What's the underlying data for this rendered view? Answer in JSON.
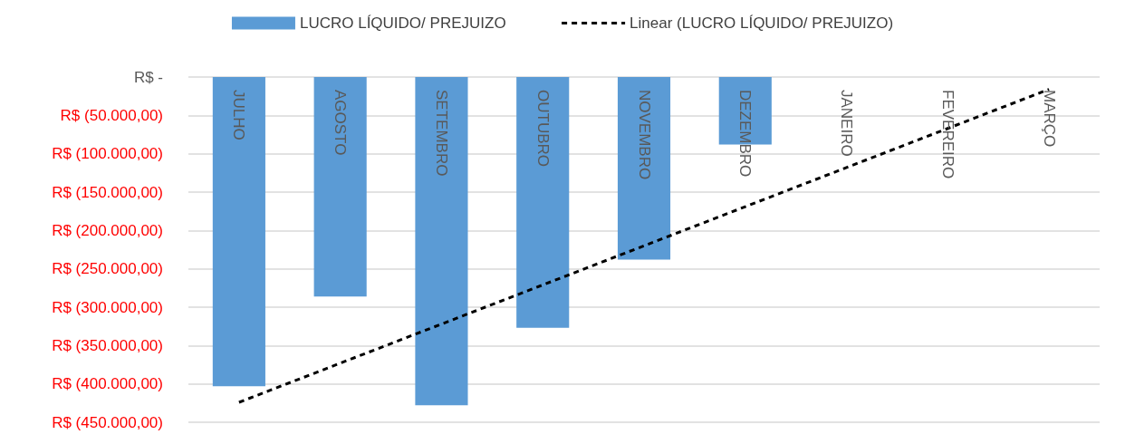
{
  "chart_data": {
    "type": "bar",
    "categories": [
      "JULHO",
      "AGOSTO",
      "SETEMBRO",
      "OUTUBRO",
      "NOVEMBRO",
      "DEZEMBRO",
      "JANEIRO",
      "FEVEREIRO",
      "MARÇO"
    ],
    "series": [
      {
        "name": "LUCRO LÍQUIDO/ PREJUIZO",
        "color": "#5b9bd5",
        "values": [
          -403000,
          -286000,
          -428000,
          -327000,
          -238000,
          -88000,
          null,
          null,
          null
        ]
      },
      {
        "name": "Linear (LUCRO LÍQUIDO/ PREJUIZO)",
        "type": "line",
        "color": "#000000",
        "line_style": "dashed",
        "marker": "none",
        "values": [
          -424000,
          -373000,
          -322000,
          -271000,
          -220000,
          -169000,
          -118000,
          -67000,
          -16000
        ]
      }
    ],
    "ylim": [
      -450000,
      0
    ],
    "yticks": [
      {
        "value": 0,
        "label": "R$ -"
      },
      {
        "value": -50000,
        "label": "R$ (50.000,00)"
      },
      {
        "value": -100000,
        "label": "R$ (100.000,00)"
      },
      {
        "value": -150000,
        "label": "R$ (150.000,00)"
      },
      {
        "value": -200000,
        "label": "R$ (200.000,00)"
      },
      {
        "value": -250000,
        "label": "R$ (250.000,00)"
      },
      {
        "value": -300000,
        "label": "R$ (300.000,00)"
      },
      {
        "value": -350000,
        "label": "R$ (350.000,00)"
      },
      {
        "value": -400000,
        "label": "R$ (400.000,00)"
      },
      {
        "value": -450000,
        "label": "R$ (450.000,00)"
      }
    ],
    "grid": "y",
    "legend": "top"
  }
}
